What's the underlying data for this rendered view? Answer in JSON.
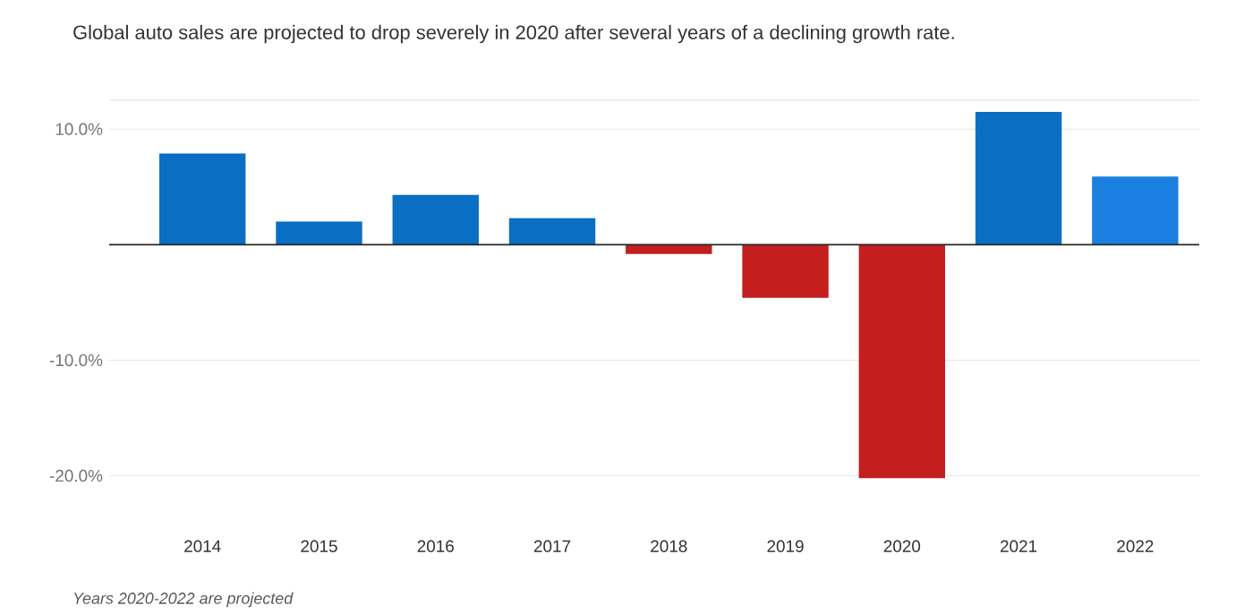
{
  "chart_data": {
    "type": "bar",
    "subtitle": "Global auto sales are projected to drop severely in 2020 after several years of a declining growth rate.",
    "categories": [
      "2014",
      "2015",
      "2016",
      "2017",
      "2018",
      "2019",
      "2020",
      "2021",
      "2022"
    ],
    "values": [
      7.9,
      2.0,
      4.3,
      2.3,
      -0.8,
      -4.6,
      -20.2,
      11.5,
      5.9
    ],
    "colors": [
      "#0a6fc2",
      "#0a6fc2",
      "#0a6fc2",
      "#0a6fc2",
      "#c41e1e",
      "#c41e1e",
      "#c41e1e",
      "#0a6fc2",
      "#1a7fe0"
    ],
    "ylim": [
      -20.5,
      12.5
    ],
    "yticks": [
      {
        "value": 10,
        "label": "10.0%"
      },
      {
        "value": -10,
        "label": "-10.0%"
      },
      {
        "value": -20,
        "label": "-20.0%"
      }
    ],
    "grid": "y",
    "annotations": [
      "Years 2020-2022 are projected"
    ]
  }
}
